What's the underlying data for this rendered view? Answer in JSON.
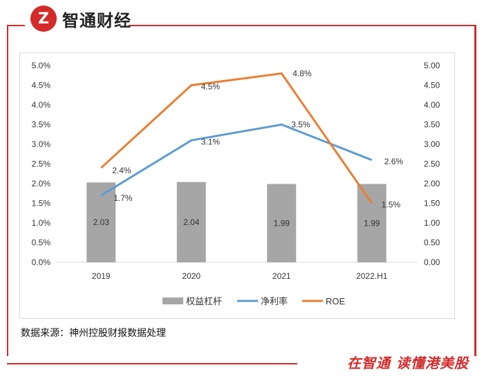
{
  "header": {
    "logo_glyph": "Z",
    "brand": "智通财经"
  },
  "source_note": "数据来源：神州控股财报数据处理",
  "footer": {
    "slogan": "在智通  读懂港美股"
  },
  "colors": {
    "bar": "#a6a6a6",
    "net_margin": "#5b9bd5",
    "roe": "#ed7d31",
    "brand": "#d42a2a"
  },
  "chart_data": {
    "type": "bar",
    "categories": [
      "2019",
      "2020",
      "2021",
      "2022.H1"
    ],
    "series": [
      {
        "name": "权益杠杆",
        "type": "bar",
        "axis": "right",
        "values": [
          2.03,
          2.04,
          1.99,
          1.99
        ],
        "labels": [
          "2.03",
          "2.04",
          "1.99",
          "1.99"
        ]
      },
      {
        "name": "净利率",
        "type": "line",
        "axis": "left",
        "values": [
          1.7,
          3.1,
          3.5,
          2.6
        ],
        "labels": [
          "1.7%",
          "3.1%",
          "3.5%",
          "2.6%"
        ]
      },
      {
        "name": "ROE",
        "type": "line",
        "axis": "left",
        "values": [
          2.4,
          4.5,
          4.8,
          1.5
        ],
        "labels": [
          "2.4%",
          "4.5%",
          "4.8%",
          "1.5%"
        ]
      }
    ],
    "left_axis": {
      "min": 0,
      "max": 5,
      "step": 0.5,
      "ticks": [
        "0.0%",
        "0.5%",
        "1.0%",
        "1.5%",
        "2.0%",
        "2.5%",
        "3.0%",
        "3.5%",
        "4.0%",
        "4.5%",
        "5.0%"
      ]
    },
    "right_axis": {
      "min": 0,
      "max": 5,
      "step": 0.5,
      "ticks": [
        "0.00",
        "0.50",
        "1.00",
        "1.50",
        "2.00",
        "2.50",
        "3.00",
        "3.50",
        "4.00",
        "4.50",
        "5.00"
      ]
    },
    "legend_position": "bottom",
    "grid": false
  }
}
